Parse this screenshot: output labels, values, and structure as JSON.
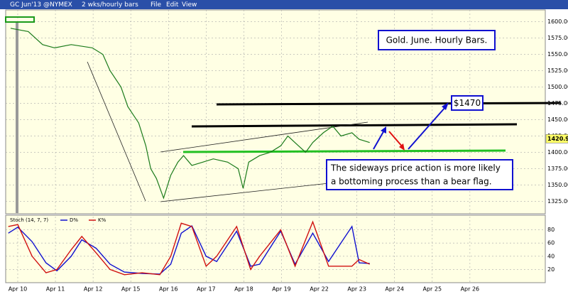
{
  "toolbar": {
    "symbol": "GC Jun'13 @NYMEX",
    "period": "2 wks/hourly bars",
    "menu": [
      "File",
      "Edit",
      "View"
    ]
  },
  "chart_data": [
    {
      "type": "line",
      "annotations": [
        "Gold. June. Hourly Bars.",
        "$1470",
        "The sideways price action is more likely",
        "a bottoming process than a bear flag."
      ],
      "x": [
        -0.19,
        0.28,
        0.66,
        0.98,
        1.42,
        1.98,
        2.26,
        2.45,
        2.74,
        2.92,
        3.21,
        3.4,
        3.53,
        3.68,
        3.87,
        4.06,
        4.25,
        4.4,
        4.62,
        4.91,
        5.19,
        5.57,
        5.85,
        5.98,
        6.13,
        6.42,
        6.7,
        6.98,
        7.17,
        7.45,
        7.64,
        7.83,
        8.11,
        8.36,
        8.58,
        8.87,
        9.06,
        9.34
      ],
      "series": [
        {
          "color": "#1a7a1a",
          "values": [
            1590,
            1585,
            1565,
            1560,
            1565,
            1560,
            1550,
            1525,
            1500,
            1470,
            1445,
            1410,
            1375,
            1360,
            1330,
            1365,
            1385,
            1395,
            1380,
            1385,
            1390,
            1385,
            1375,
            1345,
            1385,
            1395,
            1400,
            1410,
            1425,
            1410,
            1400,
            1415,
            1430,
            1440,
            1425,
            1430,
            1420,
            1415
          ]
        }
      ],
      "last_price": {
        "value": 1420.9,
        "label": "1420.90"
      },
      "xlim": [
        -0.32,
        14
      ],
      "xticks": [
        {
          "value": 0,
          "label": "Apr 10"
        },
        {
          "value": 1,
          "label": "Apr 11"
        },
        {
          "value": 2,
          "label": "Apr 12"
        },
        {
          "value": 3,
          "label": "Apr 15"
        },
        {
          "value": 4,
          "label": "Apr 16"
        },
        {
          "value": 5,
          "label": "Apr 17"
        },
        {
          "value": 6,
          "label": "Apr 18"
        },
        {
          "value": 7,
          "label": "Apr 19"
        },
        {
          "value": 8,
          "label": "Apr 22"
        },
        {
          "value": 9,
          "label": "Apr 23"
        },
        {
          "value": 10,
          "label": "Apr 24"
        },
        {
          "value": 11,
          "label": "Apr 25"
        },
        {
          "value": 12,
          "label": "Apr 26"
        }
      ],
      "ylim": [
        1306,
        1618
      ],
      "yticks": [
        {
          "value": 1325,
          "label": "1325.00"
        },
        {
          "value": 1350,
          "label": "1350.00"
        },
        {
          "value": 1375,
          "label": "1375.00"
        },
        {
          "value": 1400,
          "label": "1400.00"
        },
        {
          "value": 1425,
          "label": "1425.00"
        },
        {
          "value": 1450,
          "label": "1450.00"
        },
        {
          "value": 1475,
          "label": "1475.00"
        },
        {
          "value": 1500,
          "label": "1500.00"
        },
        {
          "value": 1525,
          "label": "1525.00"
        },
        {
          "value": 1550,
          "label": "1550.00"
        },
        {
          "value": 1575,
          "label": "1575.00"
        },
        {
          "value": 1600,
          "label": "1600.00"
        }
      ],
      "grid": true
    },
    {
      "type": "line",
      "title": "Stoch (14, 7, 7)",
      "x": [
        -0.25,
        0,
        0.38,
        0.75,
        1.04,
        1.42,
        1.7,
        2.08,
        2.45,
        2.83,
        3.3,
        3.77,
        4.06,
        4.34,
        4.62,
        5.0,
        5.28,
        5.81,
        6.18,
        6.42,
        6.98,
        7.36,
        7.83,
        8.25,
        8.87,
        9.06,
        9.34
      ],
      "series": [
        {
          "name": "D%",
          "color": "#1010d0",
          "values": [
            75,
            84,
            62,
            30,
            18,
            40,
            65,
            52,
            28,
            16,
            14,
            13,
            28,
            75,
            86,
            40,
            32,
            78,
            25,
            28,
            78,
            28,
            75,
            32,
            85,
            30,
            29
          ]
        },
        {
          "name": "K%",
          "color": "#d01010",
          "values": [
            85,
            88,
            40,
            15,
            20,
            50,
            70,
            45,
            20,
            12,
            15,
            12,
            40,
            90,
            85,
            25,
            40,
            85,
            20,
            40,
            80,
            25,
            92,
            25,
            25,
            35,
            28
          ]
        }
      ],
      "ylim": [
        0,
        100
      ],
      "yticks": [
        20,
        40,
        60,
        80
      ],
      "grid": true
    }
  ]
}
